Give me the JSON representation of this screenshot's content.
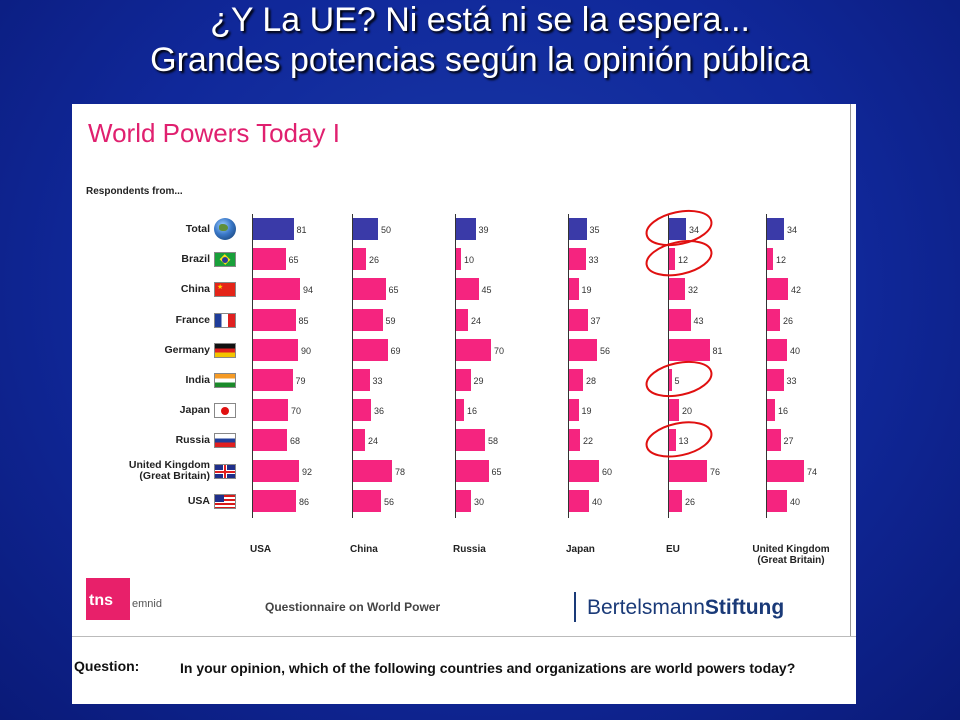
{
  "slide": {
    "title_line1": "¿Y La UE? Ni está ni se la espera...",
    "title_line2": "Grandes potencias según la opinión pública"
  },
  "chart_data": {
    "type": "bar",
    "title": "World Powers Today I",
    "row_header": "Respondents from...",
    "rows": [
      "Total",
      "Brazil",
      "China",
      "France",
      "Germany",
      "India",
      "Japan",
      "Russia",
      "United Kingdom\n(Great Britain)",
      "USA"
    ],
    "series": [
      {
        "name": "USA",
        "values": [
          81,
          65,
          94,
          85,
          90,
          79,
          70,
          68,
          92,
          86
        ]
      },
      {
        "name": "China",
        "values": [
          50,
          26,
          65,
          59,
          69,
          33,
          36,
          24,
          78,
          56
        ]
      },
      {
        "name": "Russia",
        "values": [
          39,
          10,
          45,
          24,
          70,
          29,
          16,
          58,
          65,
          30
        ]
      },
      {
        "name": "Japan",
        "values": [
          35,
          33,
          19,
          37,
          56,
          28,
          19,
          22,
          60,
          40
        ]
      },
      {
        "name": "EU",
        "values": [
          34,
          12,
          32,
          43,
          81,
          5,
          20,
          13,
          76,
          26
        ]
      },
      {
        "name": "United Kingdom\n(Great Britain)",
        "values": [
          34,
          12,
          42,
          26,
          40,
          33,
          16,
          27,
          74,
          40
        ]
      }
    ],
    "colors": {
      "total": "#3a3aa8",
      "country": "#f5247f"
    },
    "highlighted": {
      "series": "EU",
      "rows": [
        "Total",
        "Brazil",
        "India",
        "Russia"
      ],
      "color": "#e01010"
    }
  },
  "footer": {
    "logo_tns": "tns",
    "logo_emnid": "emnid",
    "questionnaire": "Questionnaire on World Power",
    "bst_regular": "Bertelsmann",
    "bst_bold": "Stiftung"
  },
  "question": {
    "label": "Question:",
    "text": "In your opinion, which of the following countries and organizations are world powers today?"
  }
}
